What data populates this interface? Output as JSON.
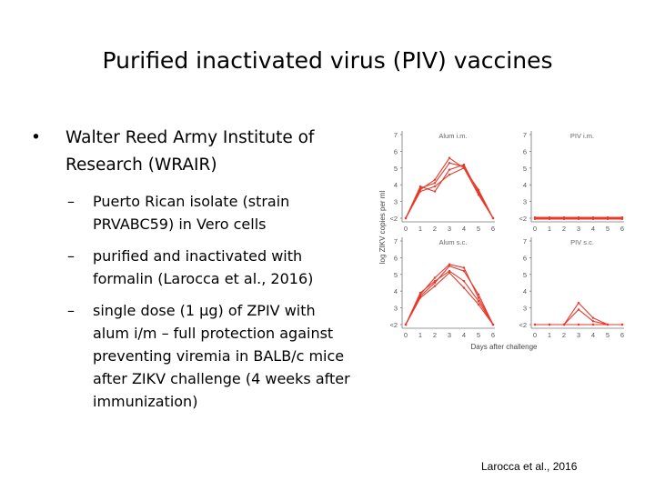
{
  "slide": {
    "title": "Purified inactivated virus (PIV) vaccines",
    "bullets": [
      {
        "text": "Walter Reed Army Institute of Research (WRAIR)",
        "level": 1,
        "lines": [
          "Walter Reed Army Institute of",
          "Research (WRAIR)"
        ]
      },
      {
        "text": "Puerto Rican isolate (strain PRVABC59) in Vero cells",
        "level": 2,
        "lines": [
          "Puerto Rican isolate (strain",
          "PRVABC59) in Vero cells"
        ]
      },
      {
        "text": "purified and inactivated with formalin (Larocca et al., 2016)",
        "level": 2,
        "lines": [
          "purified and inactivated with",
          "formalin (Larocca et al., 2016)"
        ]
      },
      {
        "text": "single dose (1 µg) of ZPIV with alum i/m – full protection against preventing viremia in BALB/c mice after ZIKV challenge (4 weeks after immunization)",
        "level": 2,
        "lines": [
          "single dose (1 µg) of ZPIV with",
          "alum i/m – full protection against",
          "preventing viremia in BALB/c mice",
          "after ZIKV challenge (4 weeks after",
          "immunization)"
        ]
      }
    ],
    "bullet_mark": "•",
    "sub_mark": "–",
    "citation": "Larocca et al., 2016"
  },
  "chart_data": [
    {
      "type": "line",
      "title": "Alum i.m.",
      "ylabel": "log ZIKV copies per ml",
      "xlabel": "Days after challenge",
      "x": [
        0,
        1,
        2,
        3,
        4,
        5,
        6
      ],
      "yticks": [
        "<2",
        "3",
        "4",
        "5",
        "6",
        "7"
      ],
      "ylim": [
        2,
        7
      ],
      "color": "#e8392b",
      "series": [
        {
          "values": [
            2,
            3.8,
            4.1,
            5.3,
            5.1,
            3.6,
            2
          ]
        },
        {
          "values": [
            2,
            3.9,
            3.6,
            4.9,
            5.2,
            3.5,
            2
          ]
        },
        {
          "values": [
            2,
            3.6,
            3.9,
            4.6,
            5.0,
            3.4,
            2
          ]
        },
        {
          "values": [
            2,
            3.7,
            4.3,
            5.6,
            5.0,
            3.7,
            2
          ]
        }
      ]
    },
    {
      "type": "line",
      "title": "PIV i.m.",
      "ylabel": "log ZIKV copies per ml",
      "xlabel": "Days after challenge",
      "x": [
        0,
        1,
        2,
        3,
        4,
        5,
        6
      ],
      "yticks": [
        "<2",
        "3",
        "4",
        "5",
        "6",
        "7"
      ],
      "ylim": [
        2,
        7
      ],
      "color": "#e8392b",
      "series": [
        {
          "values": [
            2,
            2,
            2,
            2,
            2,
            2,
            2
          ]
        },
        {
          "values": [
            2.05,
            2.05,
            2.05,
            2.05,
            2.05,
            2.05,
            2.05
          ]
        },
        {
          "values": [
            1.95,
            1.95,
            1.95,
            1.95,
            1.95,
            1.95,
            1.95
          ]
        }
      ]
    },
    {
      "type": "line",
      "title": "Alum s.c.",
      "ylabel": "log ZIKV copies per ml",
      "xlabel": "Days after challenge",
      "x": [
        0,
        1,
        2,
        3,
        4,
        5,
        6
      ],
      "yticks": [
        "<2",
        "3",
        "4",
        "5",
        "6",
        "7"
      ],
      "ylim": [
        2,
        7
      ],
      "color": "#e8392b",
      "series": [
        {
          "values": [
            2,
            3.7,
            4.5,
            5.5,
            5.2,
            3.8,
            2
          ]
        },
        {
          "values": [
            2,
            3.9,
            4.6,
            5.2,
            4.6,
            3.4,
            2
          ]
        },
        {
          "values": [
            2,
            3.6,
            4.3,
            5.1,
            4.2,
            3.2,
            2
          ]
        },
        {
          "values": [
            2,
            3.8,
            4.8,
            5.6,
            5.4,
            3.6,
            2
          ]
        }
      ]
    },
    {
      "type": "line",
      "title": "PIV s.c.",
      "ylabel": "log ZIKV copies per ml",
      "xlabel": "Days after challenge",
      "x": [
        0,
        1,
        2,
        3,
        4,
        5,
        6
      ],
      "yticks": [
        "<2",
        "3",
        "4",
        "5",
        "6",
        "7"
      ],
      "ylim": [
        2,
        7
      ],
      "color": "#e8392b",
      "series": [
        {
          "values": [
            2,
            2,
            2,
            2,
            2,
            2,
            2
          ]
        },
        {
          "values": [
            2,
            2,
            2,
            3.3,
            2.4,
            2,
            2
          ]
        },
        {
          "values": [
            2,
            2,
            2,
            2.9,
            2.2,
            2,
            2
          ]
        }
      ]
    }
  ]
}
